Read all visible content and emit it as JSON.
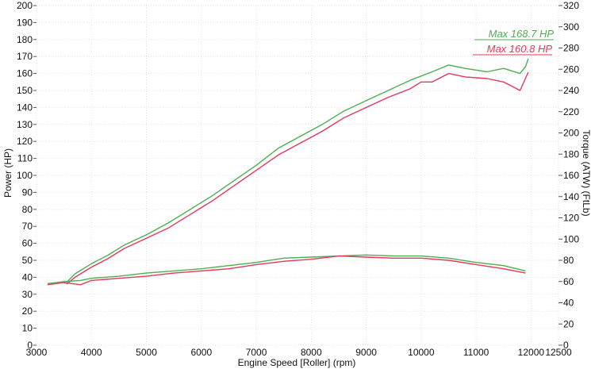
{
  "chart_data": {
    "type": "line",
    "title": "",
    "xlabel": "Engine Speed [Roller] (rpm)",
    "ylabel_left": "Power (HP)",
    "ylabel_right": "Torque (ATW) (FtLb)",
    "xlim": [
      3000,
      12500
    ],
    "ylim_left": [
      0,
      200
    ],
    "ylim_right": [
      0,
      320
    ],
    "x_ticks": [
      "3000",
      "4000",
      "5000",
      "6000",
      "7000",
      "8000",
      "9000",
      "10000",
      "11000",
      "12000",
      "12500"
    ],
    "y_left_ticks": [
      "0",
      "10",
      "20",
      "30",
      "40",
      "50",
      "60",
      "70",
      "80",
      "90",
      "100",
      "110",
      "120",
      "130",
      "140",
      "150",
      "160",
      "170",
      "180",
      "190",
      "200"
    ],
    "y_right_ticks": [
      "0",
      "20",
      "40",
      "60",
      "80",
      "100",
      "120",
      "140",
      "160",
      "180",
      "200",
      "220",
      "240",
      "260",
      "280",
      "300",
      "320"
    ],
    "grid": true,
    "annotations": [
      {
        "text": "Max 168.7 HP",
        "color": "#4caf50"
      },
      {
        "text": "Max 160.8 HP",
        "color": "#e8365d"
      }
    ],
    "series": [
      {
        "kind": "power",
        "axis": "left",
        "color": "#4caf50",
        "x": [
          3550,
          3700,
          4000,
          4300,
          4600,
          5000,
          5400,
          5800,
          6200,
          6600,
          7000,
          7400,
          7800,
          8200,
          8600,
          9000,
          9400,
          9800,
          10200,
          10500,
          10800,
          11200,
          11500,
          11800,
          11900,
          11950
        ],
        "values": [
          37,
          42,
          48,
          53,
          59,
          65,
          72,
          80,
          88,
          97,
          106,
          116,
          123,
          130,
          138,
          144,
          150,
          156,
          161,
          165,
          163,
          161,
          163,
          160,
          164,
          168.7
        ]
      },
      {
        "kind": "power",
        "axis": "left",
        "color": "#e8365d",
        "x": [
          3550,
          3700,
          4000,
          4300,
          4600,
          5000,
          5400,
          5800,
          6200,
          6600,
          7000,
          7400,
          7800,
          8200,
          8600,
          9000,
          9400,
          9800,
          10000,
          10200,
          10500,
          10800,
          11200,
          11500,
          11800,
          11950
        ],
        "values": [
          36,
          40,
          46,
          51,
          57,
          63,
          69,
          77,
          85,
          94,
          103,
          112,
          119,
          126,
          134,
          140,
          146,
          151,
          155,
          155,
          160,
          158,
          157,
          155,
          150,
          160.8
        ]
      },
      {
        "kind": "torque",
        "axis": "right",
        "color": "#4caf50",
        "x": [
          3200,
          3500,
          3800,
          4000,
          4500,
          5000,
          5500,
          6000,
          6500,
          7000,
          7500,
          8000,
          8500,
          9000,
          9500,
          10000,
          10500,
          11000,
          11500,
          11900
        ],
        "values": [
          58,
          60,
          61,
          63,
          65,
          68,
          70,
          72,
          75,
          78,
          82,
          83,
          84,
          85,
          84,
          84,
          82,
          78,
          75,
          70
        ]
      },
      {
        "kind": "torque",
        "axis": "right",
        "color": "#e8365d",
        "x": [
          3200,
          3500,
          3800,
          4000,
          4500,
          5000,
          5500,
          6000,
          6500,
          7000,
          7500,
          8000,
          8500,
          9000,
          9500,
          10000,
          10500,
          11000,
          11500,
          11900
        ],
        "values": [
          57,
          59,
          57,
          61,
          63,
          65,
          68,
          70,
          72,
          76,
          79,
          81,
          84,
          83,
          82,
          82,
          80,
          76,
          72,
          68
        ]
      }
    ]
  }
}
